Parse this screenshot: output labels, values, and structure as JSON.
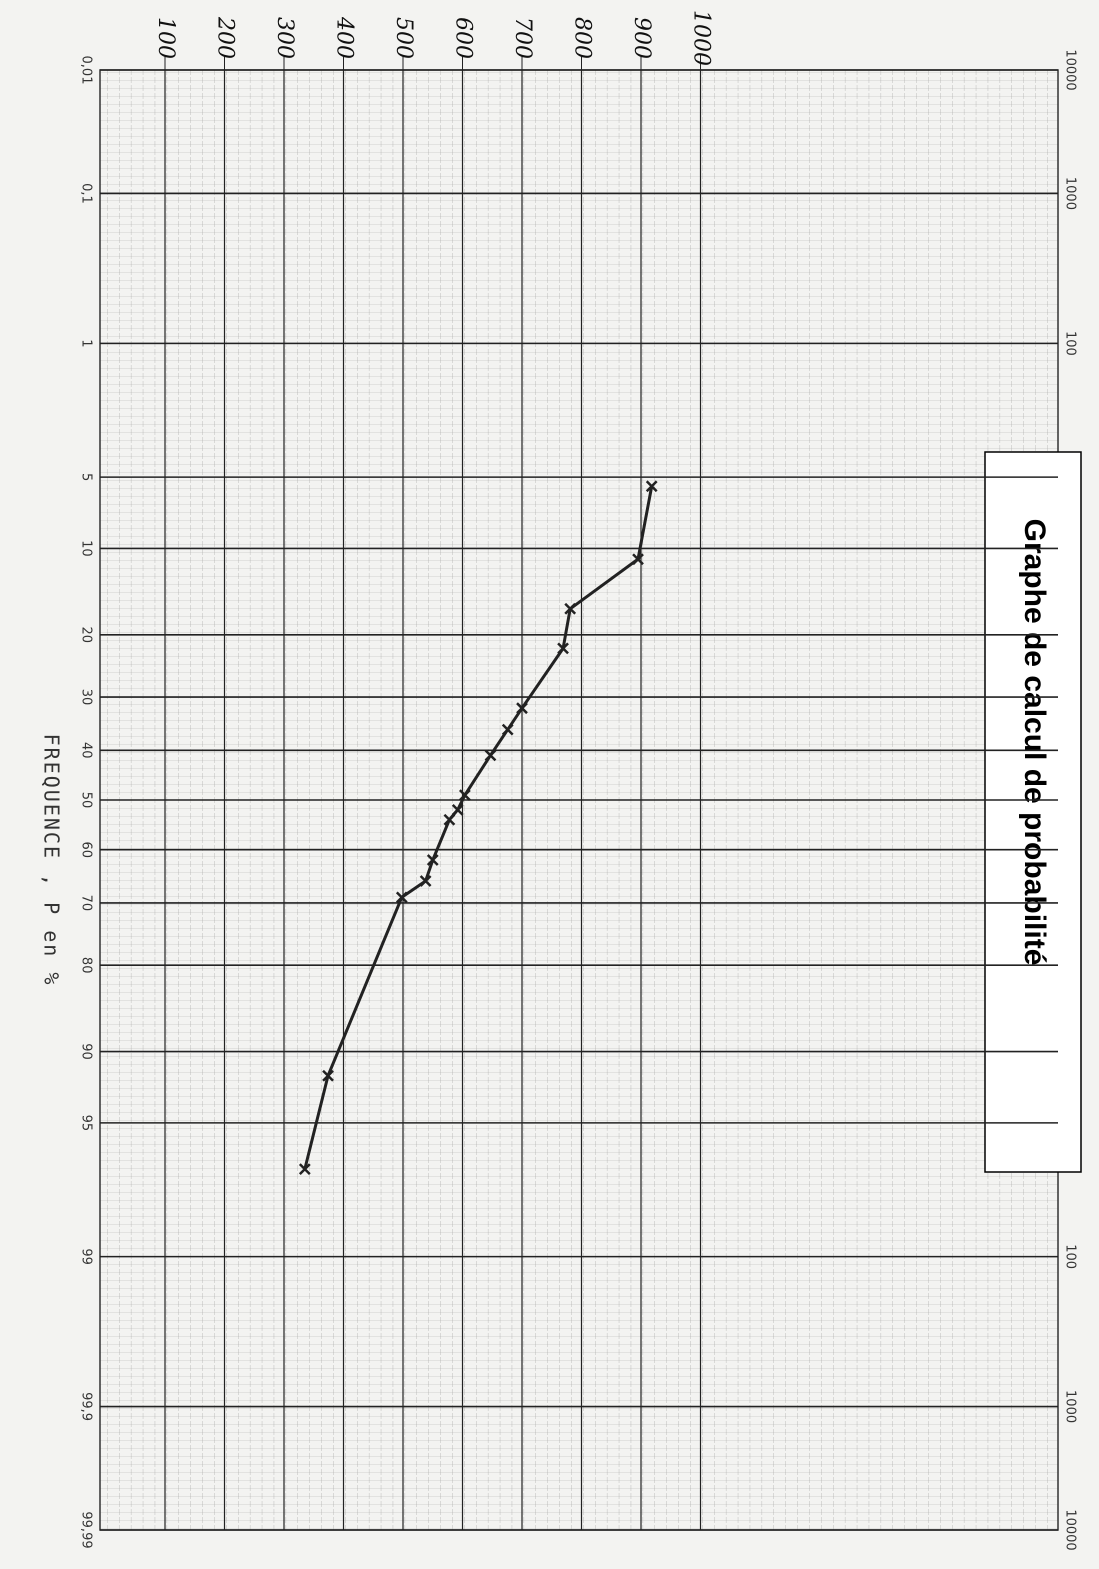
{
  "chart_data": {
    "type": "line",
    "title": "Graphe de calcul de probabilité",
    "x_label": "FREQUENCE , P en %",
    "x": [
      5.5,
      11,
      16.5,
      22,
      32,
      36,
      41,
      49,
      52,
      54,
      62,
      66,
      69,
      92,
      97
    ],
    "values": [
      918,
      895,
      781,
      769,
      700,
      676,
      647,
      604,
      592,
      578,
      550,
      538,
      498,
      374,
      335
    ],
    "color": "#222222",
    "xlim": [
      0.01,
      99.99
    ],
    "xticks": [
      {
        "value": 0.01,
        "label": "0,01"
      },
      {
        "value": 0.1,
        "label": "0,1"
      },
      1,
      5,
      10,
      20,
      30,
      40,
      50,
      60,
      70,
      80,
      90,
      95,
      99,
      {
        "value": 99.9,
        "label": "99,9"
      },
      {
        "value": 99.99,
        "label": "99,99"
      }
    ],
    "x2ticks": [
      {
        "value": 0.01,
        "label": "10000"
      },
      {
        "value": 0.1,
        "label": "1000"
      },
      {
        "value": 1,
        "label": "100"
      },
      {
        "value": 99,
        "label": "100"
      },
      {
        "value": 99.9,
        "label": "1000"
      },
      {
        "value": 99.99,
        "label": "10000"
      }
    ],
    "ylim": [
      0,
      1600
    ],
    "yticks": [
      100,
      200,
      300,
      400,
      500,
      600,
      700,
      800,
      900,
      1000
    ],
    "grid": true
  }
}
